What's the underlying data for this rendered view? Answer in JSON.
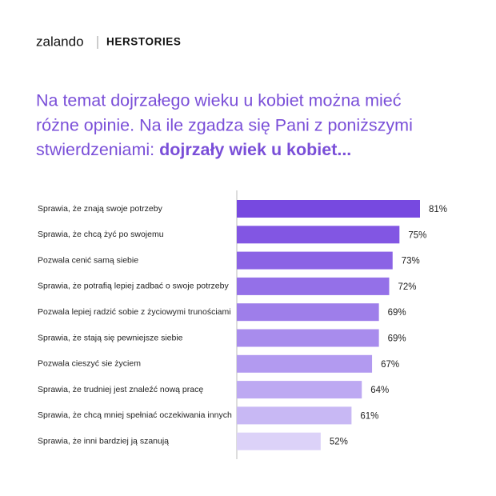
{
  "chart_data": {
    "type": "bar",
    "orientation": "horizontal",
    "brand": [
      "zalando",
      "HERSTORIES"
    ],
    "title_lines": [
      "Na temat dojrzałego wieku u kobiet można mieć",
      "różne opinie. Na ile zgadza się Pani z poniższymi",
      "stwierdzeniami: "
    ],
    "title_emphasis": "dojrzały wiek u kobiet...",
    "categories": [
      "Sprawia, że znają swoje potrzeby",
      "Sprawia, że chcą żyć po swojemu",
      "Pozwala cenić samą siebie",
      "Sprawia, że potrafią lepiej zadbać o swoje potrzeby",
      "Pozwala lepiej radzić sobie z życiowymi trunościami",
      "Sprawia, że stają się pewniejsze siebie",
      "Pozwala cieszyć sie życiem",
      "Sprawia, że trudniej jest znaleźć nową pracę",
      "Sprawia, że chcą mniej spełniać oczekiwania innych",
      "Sprawia, że inni bardziej ją szanują"
    ],
    "values": [
      81,
      75,
      73,
      72,
      69,
      69,
      67,
      64,
      61,
      52
    ],
    "value_labels": [
      "81%",
      "75%",
      "73%",
      "72%",
      "69%",
      "69%",
      "67%",
      "64%",
      "61%",
      "52%"
    ],
    "colors": [
      "#7749e0",
      "#8256e3",
      "#8b63e5",
      "#9470e8",
      "#9e7eea",
      "#a88ced",
      "#b29af0",
      "#bda9f2",
      "#c8b8f4",
      "#dcd2f8"
    ],
    "xlim": [
      27.5,
      81
    ]
  }
}
